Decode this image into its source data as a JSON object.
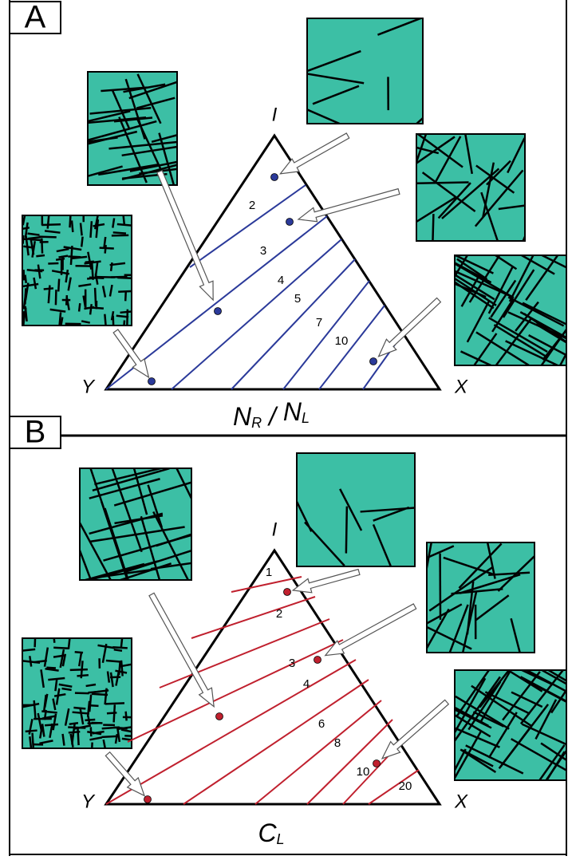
{
  "panels": [
    {
      "label": "A",
      "vertices": {
        "top": "I",
        "left": "Y",
        "right": "X"
      },
      "contour_labels": [
        2,
        3,
        4,
        5,
        7,
        10
      ],
      "axis_title": {
        "main1": "N",
        "sub1": "R",
        "sep": " / ",
        "main2": "N",
        "sub2": "L"
      }
    },
    {
      "label": "B",
      "vertices": {
        "top": "I",
        "left": "Y",
        "right": "X"
      },
      "contour_labels": [
        1,
        2,
        3,
        4,
        6,
        8,
        10,
        20
      ],
      "axis_title": {
        "main1": "C",
        "sub1": "L"
      }
    }
  ]
}
